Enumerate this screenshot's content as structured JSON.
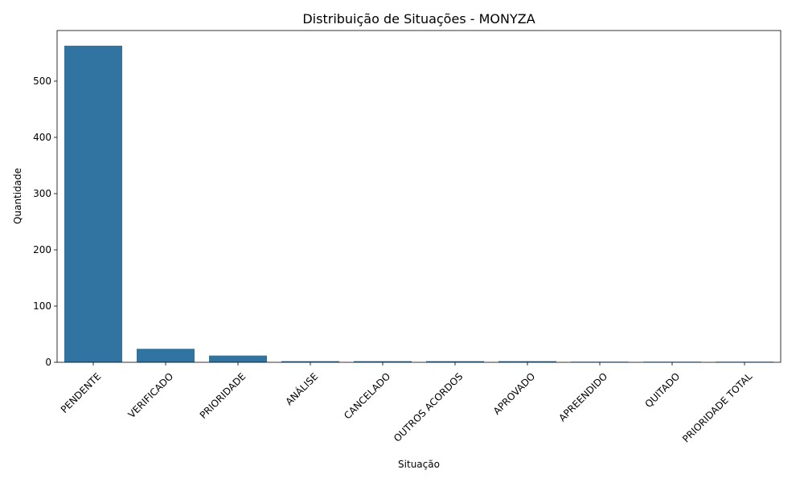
{
  "chart_data": {
    "type": "bar",
    "title": "Distribuição de Situações - MONYZA",
    "xlabel": "Situação",
    "ylabel": "Quantidade",
    "categories": [
      "PENDENTE",
      "VERIFICADO",
      "PRIORIDADE",
      "ANÁLISE",
      "CANCELADO",
      "OUTROS ACORDOS",
      "APROVADO",
      "APREENDIDO",
      "QUITADO",
      "PRIORIDADE TOTAL"
    ],
    "values": [
      563,
      24,
      12,
      2,
      2,
      2,
      2,
      1,
      1,
      1
    ],
    "ylim": [
      0,
      590
    ],
    "yticks": [
      0,
      100,
      200,
      300,
      400,
      500
    ],
    "bar_color": "#3274a1",
    "grid": false,
    "legend": false
  }
}
